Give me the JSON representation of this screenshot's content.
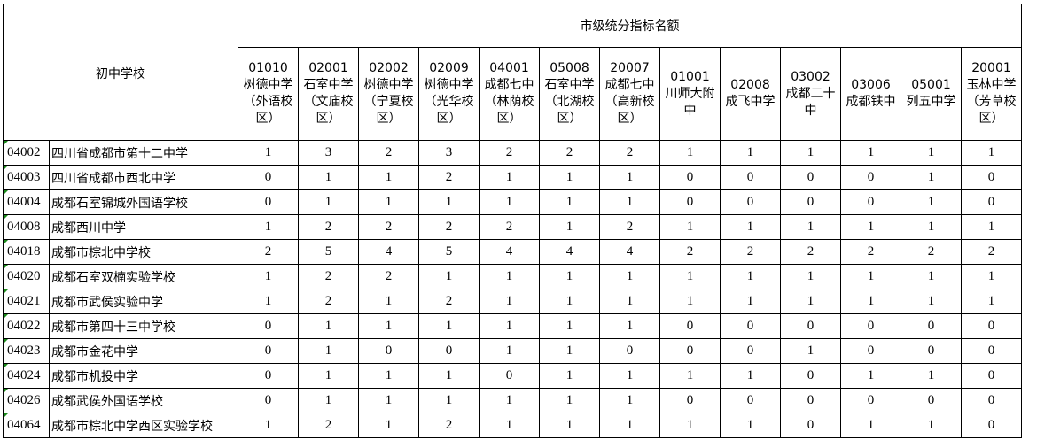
{
  "title": "市级统分指标名额",
  "row_header": "初中学校",
  "columns": [
    {
      "code": "01010",
      "name": "树德中学（外语校区）"
    },
    {
      "code": "02001",
      "name": "石室中学（文庙校区）"
    },
    {
      "code": "02002",
      "name": "树德中学（宁夏校区）"
    },
    {
      "code": "02009",
      "name": "树德中学（光华校区）"
    },
    {
      "code": "04001",
      "name": "成都七中（林荫校区）"
    },
    {
      "code": "05008",
      "name": "石室中学（北湖校区）"
    },
    {
      "code": "20007",
      "name": "成都七中（高新校区）"
    },
    {
      "code": "01001",
      "name": "川师大附中"
    },
    {
      "code": "02008",
      "name": "成飞中学"
    },
    {
      "code": "03002",
      "name": "成都二十中"
    },
    {
      "code": "03006",
      "name": "成都铁中"
    },
    {
      "code": "05001",
      "name": "列五中学"
    },
    {
      "code": "20001",
      "name": "玉林中学（芳草校区）"
    }
  ],
  "rows": [
    {
      "code": "04002",
      "name": "四川省成都市第十二中学",
      "values": [
        1,
        3,
        2,
        3,
        2,
        2,
        2,
        1,
        1,
        1,
        1,
        1,
        1
      ]
    },
    {
      "code": "04003",
      "name": "四川省成都市西北中学",
      "values": [
        0,
        1,
        1,
        2,
        1,
        1,
        1,
        0,
        0,
        0,
        0,
        1,
        0
      ]
    },
    {
      "code": "04004",
      "name": "成都石室锦城外国语学校",
      "values": [
        0,
        1,
        1,
        1,
        1,
        1,
        1,
        0,
        0,
        0,
        0,
        1,
        0
      ]
    },
    {
      "code": "04008",
      "name": "成都西川中学",
      "values": [
        1,
        2,
        2,
        2,
        2,
        1,
        2,
        1,
        1,
        1,
        1,
        1,
        1
      ]
    },
    {
      "code": "04018",
      "name": "成都市棕北中学校",
      "values": [
        2,
        5,
        4,
        5,
        4,
        4,
        4,
        2,
        2,
        2,
        2,
        2,
        2
      ]
    },
    {
      "code": "04020",
      "name": "成都石室双楠实验学校",
      "values": [
        1,
        2,
        2,
        1,
        1,
        1,
        1,
        1,
        1,
        1,
        1,
        1,
        1
      ]
    },
    {
      "code": "04021",
      "name": "成都市武侯实验中学",
      "values": [
        1,
        2,
        1,
        2,
        1,
        1,
        1,
        1,
        1,
        1,
        1,
        1,
        1
      ]
    },
    {
      "code": "04022",
      "name": "成都市第四十三中学校",
      "values": [
        0,
        1,
        1,
        1,
        1,
        1,
        1,
        0,
        0,
        0,
        0,
        0,
        0
      ]
    },
    {
      "code": "04023",
      "name": "成都市金花中学",
      "values": [
        0,
        1,
        0,
        0,
        1,
        1,
        0,
        0,
        0,
        1,
        0,
        0,
        0
      ]
    },
    {
      "code": "04024",
      "name": "成都市机投中学",
      "values": [
        0,
        1,
        1,
        1,
        0,
        1,
        1,
        1,
        1,
        0,
        1,
        1,
        0
      ]
    },
    {
      "code": "04026",
      "name": "成都武侯外国语学校",
      "values": [
        0,
        1,
        1,
        1,
        1,
        1,
        1,
        0,
        0,
        0,
        0,
        0,
        0
      ]
    },
    {
      "code": "04064",
      "name": "成都市棕北中学西区实验学校",
      "values": [
        1,
        2,
        1,
        2,
        1,
        1,
        1,
        1,
        1,
        0,
        1,
        1,
        0
      ]
    }
  ]
}
